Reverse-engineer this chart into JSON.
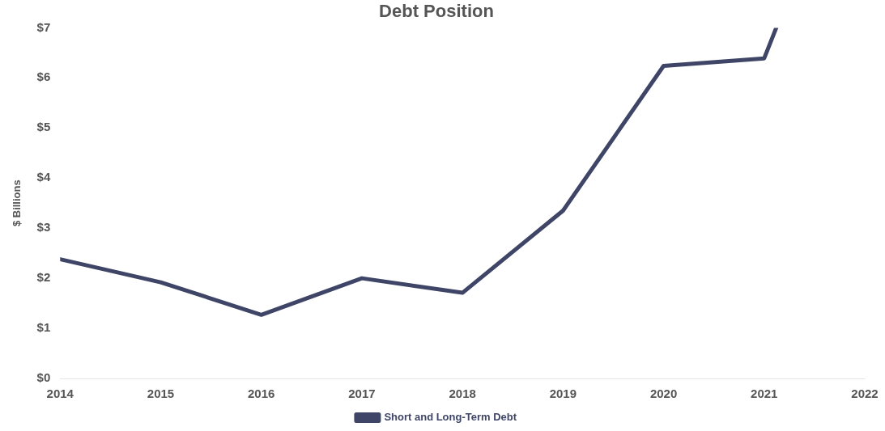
{
  "chart_data": {
    "type": "line",
    "title": "Debt Position",
    "ylabel": "$ Billions",
    "x": [
      2014,
      2015,
      2016,
      2017,
      2018,
      2019,
      2020,
      2021,
      2021.12
    ],
    "series": [
      {
        "name": "Short and Long-Term Debt",
        "color": "#3f4566",
        "values": [
          2.38,
          1.92,
          1.27,
          2.0,
          1.71,
          3.35,
          6.24,
          6.39,
          7
        ]
      }
    ],
    "xlim": [
      2014,
      2022
    ],
    "xticks": [
      2014,
      2015,
      2016,
      2017,
      2018,
      2019,
      2020,
      2021,
      2022
    ],
    "ylim": [
      0,
      7
    ],
    "yticks": [
      {
        "value": 0,
        "label": "$0"
      },
      {
        "value": 1,
        "label": "$1"
      },
      {
        "value": 2,
        "label": "$2"
      },
      {
        "value": 3,
        "label": "$3"
      },
      {
        "value": 4,
        "label": "$4"
      },
      {
        "value": 5,
        "label": "$5"
      },
      {
        "value": 6,
        "label": "$6"
      },
      {
        "value": 7,
        "label": "$7"
      }
    ],
    "grid": false,
    "legend": "bottom",
    "marker": "none",
    "line_style": "solid"
  }
}
